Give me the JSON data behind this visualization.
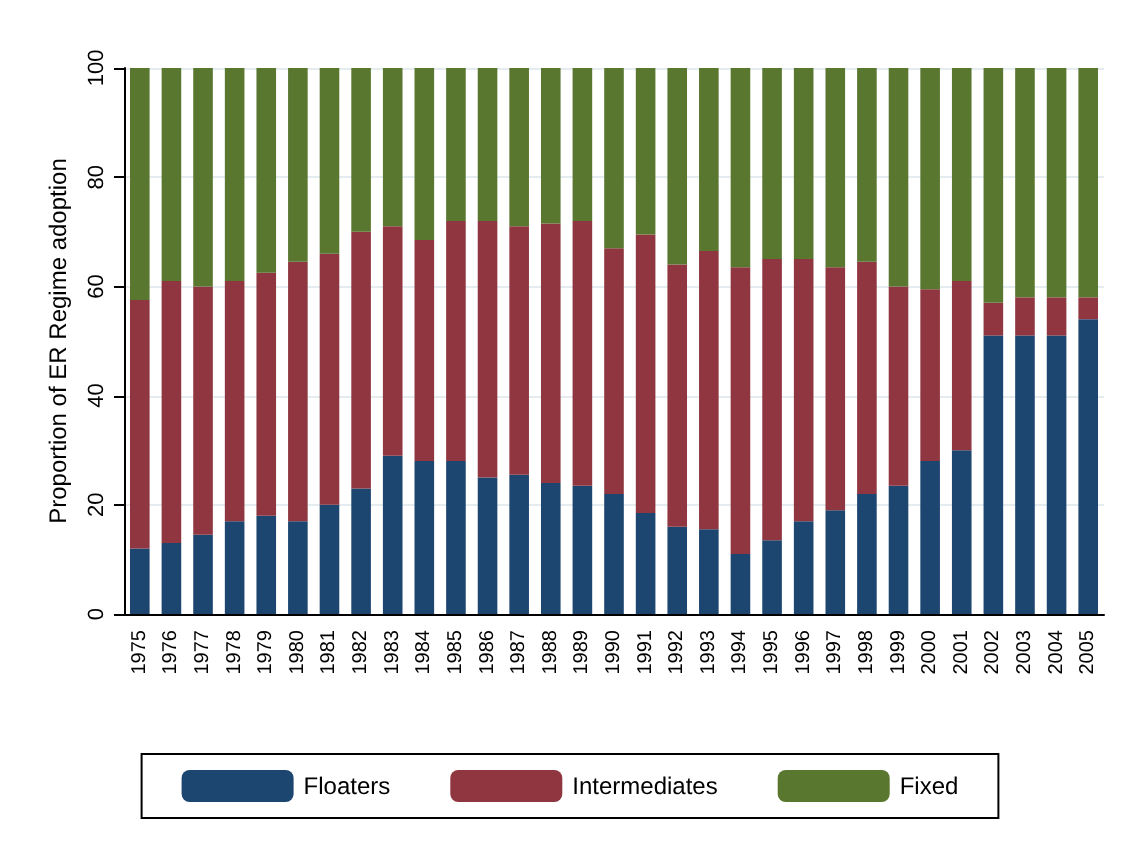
{
  "chart_data": {
    "type": "bar",
    "stacked": true,
    "ylabel": "Proportion of ER Regime adoption",
    "categories": [
      "1975",
      "1976",
      "1977",
      "1978",
      "1979",
      "1980",
      "1981",
      "1982",
      "1983",
      "1984",
      "1985",
      "1986",
      "1987",
      "1988",
      "1989",
      "1990",
      "1991",
      "1992",
      "1993",
      "1994",
      "1995",
      "1996",
      "1997",
      "1998",
      "1999",
      "2000",
      "2001",
      "2002",
      "2003",
      "2004",
      "2005"
    ],
    "series": [
      {
        "name": "Floaters",
        "color": "#1c4570",
        "values": [
          12,
          13,
          14.5,
          17,
          18,
          17,
          20,
          23,
          29,
          28,
          28,
          25,
          25.5,
          24,
          23.5,
          22,
          18.5,
          16,
          15.5,
          11,
          13.5,
          17,
          19,
          22,
          23.5,
          28,
          30,
          51,
          51,
          51,
          54
        ]
      },
      {
        "name": "Intermediates",
        "color": "#8f3640",
        "values": [
          45.5,
          48,
          45.5,
          44,
          44.5,
          47.5,
          46,
          47,
          42,
          40.5,
          44,
          47,
          45.5,
          47.5,
          48.5,
          45,
          51,
          48,
          51,
          52.5,
          51.5,
          48,
          44.5,
          42.5,
          36.5,
          31.5,
          31,
          6,
          7,
          7,
          4
        ]
      },
      {
        "name": "Fixed",
        "color": "#5a7730",
        "values": [
          42.5,
          39,
          40,
          39,
          37.5,
          35.5,
          34,
          30,
          29,
          31.5,
          28,
          28,
          29,
          28.5,
          28,
          33,
          30.5,
          36,
          33.5,
          36.5,
          35,
          35,
          36.5,
          35.5,
          40,
          40.5,
          39,
          43,
          42,
          42,
          42
        ]
      }
    ],
    "ylim": [
      0,
      100
    ],
    "yticks": [
      0,
      20,
      40,
      60,
      80,
      100
    ],
    "grid": "y",
    "legend": "bottom"
  }
}
